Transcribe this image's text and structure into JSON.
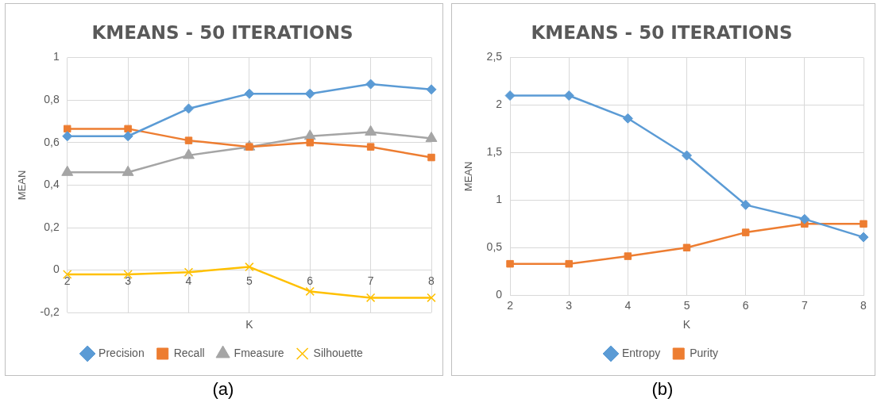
{
  "chart_data": [
    {
      "type": "line",
      "title": "KMEANS - 50 ITERATIONS",
      "xlabel": "K",
      "ylabel": "MEAN",
      "categories": [
        "2",
        "3",
        "4",
        "5",
        "6",
        "7",
        "8"
      ],
      "series": [
        {
          "name": "Precision",
          "color": "#5b9bd5",
          "marker": "diamond",
          "values": [
            0.63,
            0.63,
            0.76,
            0.83,
            0.83,
            0.875,
            0.85
          ]
        },
        {
          "name": "Recall",
          "color": "#ed7d31",
          "marker": "square",
          "values": [
            0.665,
            0.665,
            0.61,
            0.58,
            0.6,
            0.58,
            0.53
          ]
        },
        {
          "name": "Fmeasure",
          "color": "#a5a5a5",
          "marker": "triangle",
          "values": [
            0.46,
            0.46,
            0.54,
            0.58,
            0.63,
            0.65,
            0.62
          ]
        },
        {
          "name": "Silhouette",
          "color": "#ffc000",
          "marker": "cross",
          "values": [
            -0.02,
            -0.02,
            -0.01,
            0.015,
            -0.1,
            -0.13,
            -0.13
          ]
        }
      ],
      "ylim": [
        -0.2,
        1
      ],
      "yticks": [
        {
          "value": -0.2,
          "label": "-0,2"
        },
        0,
        {
          "value": 0.2,
          "label": "0,2"
        },
        {
          "value": 0.4,
          "label": "0,4"
        },
        {
          "value": 0.6,
          "label": "0,6"
        },
        {
          "value": 0.8,
          "label": "0,8"
        },
        1
      ],
      "grid": true,
      "legend": "bottom",
      "annotations": [
        "(a)"
      ]
    },
    {
      "type": "line",
      "title": "KMEANS - 50 ITERATIONS",
      "xlabel": "K",
      "ylabel": "MEAN",
      "categories": [
        "2",
        "3",
        "4",
        "5",
        "6",
        "7",
        "8"
      ],
      "series": [
        {
          "name": "Entropy",
          "color": "#5b9bd5",
          "marker": "diamond",
          "values": [
            2.1,
            2.1,
            1.86,
            1.47,
            0.95,
            0.8,
            0.61
          ]
        },
        {
          "name": "Purity",
          "color": "#ed7d31",
          "marker": "square",
          "values": [
            0.33,
            0.33,
            0.41,
            0.5,
            0.66,
            0.75,
            0.75
          ]
        }
      ],
      "ylim": [
        0,
        2.5
      ],
      "yticks": [
        0,
        {
          "value": 0.5,
          "label": "0,5"
        },
        1,
        {
          "value": 1.5,
          "label": "1,5"
        },
        2,
        {
          "value": 2.5,
          "label": "2,5"
        }
      ],
      "grid": true,
      "legend": "bottom",
      "annotations": [
        "(b)"
      ]
    }
  ]
}
